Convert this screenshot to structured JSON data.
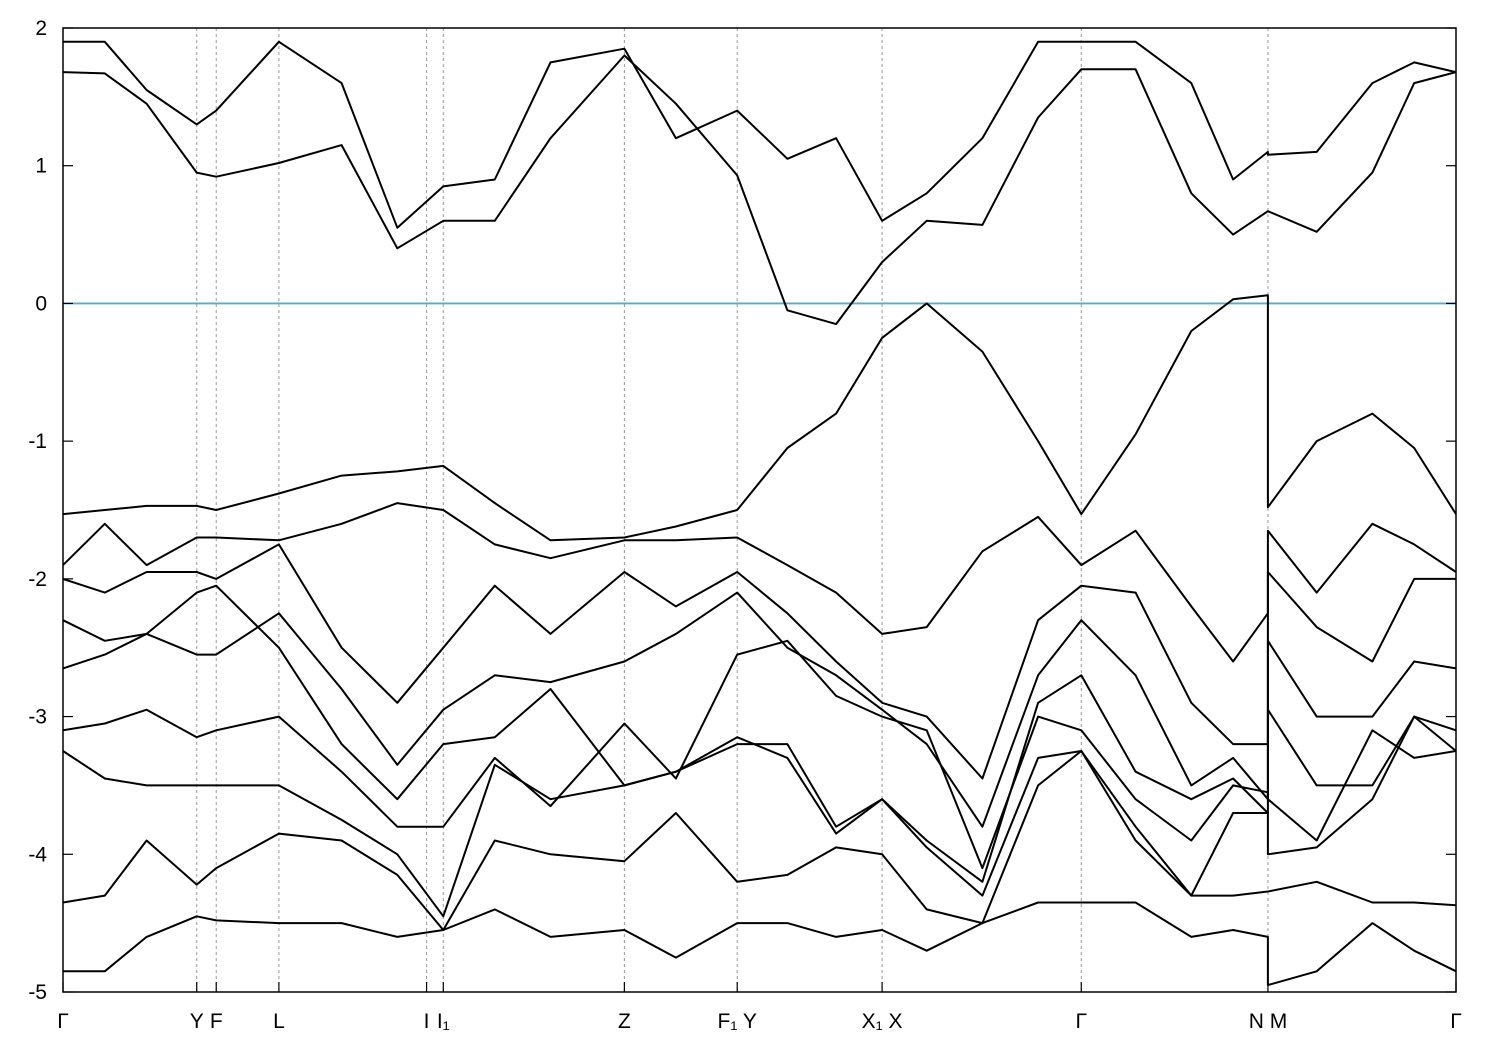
{
  "chart_data": {
    "type": "line",
    "xlim": [
      0,
      1
    ],
    "ylim": [
      -5,
      2
    ],
    "yticks": [
      -5,
      -4,
      -3,
      -2,
      -1,
      0,
      1,
      2
    ],
    "xticks": [
      {
        "value": 0,
        "label": "Γ"
      },
      {
        "value": 0.096,
        "label": "Y"
      },
      {
        "value": 0.11,
        "label": "F"
      },
      {
        "value": 0.155,
        "label": "L"
      },
      {
        "value": 0.261,
        "label": "I"
      },
      {
        "value": 0.273,
        "label": "I₁"
      },
      {
        "value": 0.403,
        "label": "Z"
      },
      {
        "value": 0.484,
        "label": "F₁ Y"
      },
      {
        "value": 0.588,
        "label": "X₁ X"
      },
      {
        "value": 0.731,
        "label": "Γ"
      },
      {
        "value": 0.865,
        "label": "N M"
      },
      {
        "value": 1,
        "label": "Γ"
      }
    ],
    "xgrid": true,
    "reference_line": {
      "value": 0,
      "color": "#5aaac8"
    },
    "x": [
      0,
      0.03,
      0.06,
      0.096,
      0.11,
      0.155,
      0.2,
      0.24,
      0.273,
      0.31,
      0.35,
      0.403,
      0.44,
      0.484,
      0.52,
      0.555,
      0.588,
      0.62,
      0.66,
      0.7,
      0.731,
      0.77,
      0.81,
      0.84,
      0.865,
      0.865,
      0.9,
      0.94,
      0.97,
      1.0
    ],
    "series": [
      {
        "color": "#000000",
        "values": [
          1.9,
          1.9,
          1.55,
          1.3,
          1.4,
          1.9,
          1.6,
          0.55,
          0.85,
          0.9,
          1.75,
          1.85,
          1.2,
          1.4,
          1.05,
          1.2,
          0.6,
          0.8,
          1.2,
          1.9,
          1.9,
          1.9,
          1.6,
          0.9,
          1.1,
          1.08,
          1.1,
          1.6,
          1.75,
          1.68
        ]
      },
      {
        "color": "#000000",
        "values": [
          1.68,
          1.67,
          1.45,
          0.95,
          0.92,
          1.02,
          1.15,
          0.4,
          0.6,
          0.6,
          1.2,
          1.8,
          1.45,
          0.93,
          -0.05,
          -0.15,
          0.3,
          0.6,
          0.57,
          1.35,
          1.7,
          1.7,
          0.8,
          0.5,
          0.67,
          0.67,
          0.52,
          0.95,
          1.6,
          1.68
        ]
      },
      {
        "color": "#000000",
        "values": [
          -1.53,
          -1.5,
          -1.47,
          -1.47,
          -1.5,
          -1.38,
          -1.25,
          -1.22,
          -1.18,
          -1.45,
          -1.72,
          -1.7,
          -1.62,
          -1.5,
          -1.05,
          -0.8,
          -0.25,
          0.0,
          -0.35,
          -1.0,
          -1.53,
          -0.95,
          -0.2,
          0.03,
          0.06,
          -1.48,
          -1.0,
          -0.8,
          -1.05,
          -1.53
        ]
      },
      {
        "color": "#000000",
        "values": [
          -1.9,
          -1.6,
          -1.9,
          -1.7,
          -1.7,
          -1.72,
          -1.6,
          -1.45,
          -1.5,
          -1.75,
          -1.85,
          -1.72,
          -1.72,
          -1.7,
          -1.9,
          -2.1,
          -2.4,
          -2.35,
          -1.8,
          -1.55,
          -1.9,
          -1.65,
          -2.2,
          -2.6,
          -2.25,
          -1.65,
          -2.1,
          -1.6,
          -1.75,
          -1.95
        ]
      },
      {
        "color": "#000000",
        "values": [
          -2.0,
          -2.1,
          -1.95,
          -1.95,
          -2.0,
          -1.75,
          -2.5,
          -2.9,
          -2.5,
          -2.05,
          -2.4,
          -1.95,
          -2.2,
          -1.95,
          -2.25,
          -2.6,
          -2.9,
          -3.0,
          -3.45,
          -2.3,
          -2.05,
          -2.1,
          -2.9,
          -3.2,
          -3.2,
          -1.95,
          -2.35,
          -2.6,
          -2.0,
          -2.0
        ]
      },
      {
        "color": "#000000",
        "values": [
          -2.3,
          -2.45,
          -2.4,
          -2.55,
          -2.55,
          -2.25,
          -2.8,
          -3.35,
          -2.95,
          -2.7,
          -2.75,
          -2.6,
          -2.4,
          -2.1,
          -2.5,
          -2.7,
          -2.95,
          -3.2,
          -3.8,
          -2.7,
          -2.3,
          -2.7,
          -3.5,
          -3.3,
          -3.6,
          -2.45,
          -3.0,
          -3.0,
          -2.6,
          -2.65
        ]
      },
      {
        "color": "#000000",
        "values": [
          -2.65,
          -2.55,
          -2.4,
          -2.1,
          -2.05,
          -2.5,
          -3.2,
          -3.6,
          -3.2,
          -3.15,
          -2.8,
          -3.5,
          -3.4,
          -3.2,
          -3.2,
          -3.8,
          -3.6,
          -3.9,
          -4.2,
          -2.9,
          -2.7,
          -3.4,
          -3.6,
          -3.45,
          -3.7,
          -2.95,
          -3.5,
          -3.5,
          -3.0,
          -3.1
        ]
      },
      {
        "color": "#000000",
        "values": [
          -3.1,
          -3.05,
          -2.95,
          -3.15,
          -3.1,
          -3.0,
          -3.4,
          -3.8,
          -3.8,
          -3.3,
          -3.65,
          -3.05,
          -3.45,
          -2.55,
          -2.45,
          -2.85,
          -3.0,
          -3.1,
          -4.1,
          -3.0,
          -3.1,
          -3.6,
          -3.9,
          -3.5,
          -3.55,
          -3.6,
          -3.9,
          -3.1,
          -3.3,
          -3.25
        ]
      },
      {
        "color": "#000000",
        "values": [
          -3.25,
          -3.45,
          -3.5,
          -3.5,
          -3.5,
          -3.5,
          -3.75,
          -4.0,
          -4.45,
          -3.35,
          -3.6,
          -3.5,
          -3.4,
          -3.15,
          -3.3,
          -3.85,
          -3.6,
          -3.95,
          -4.3,
          -3.3,
          -3.25,
          -3.8,
          -4.3,
          -3.7,
          -3.7,
          -4.0,
          -3.95,
          -3.6,
          -3.0,
          -3.25
        ]
      },
      {
        "color": "#000000",
        "values": [
          -4.35,
          -4.3,
          -3.9,
          -4.22,
          -4.1,
          -3.85,
          -3.9,
          -4.15,
          -4.55,
          -3.9,
          -4.0,
          -4.05,
          -3.7,
          -4.2,
          -4.15,
          -3.95,
          -4.0,
          -4.4,
          -4.5,
          -3.5,
          -3.25,
          -3.9,
          -4.3,
          -4.3,
          -4.27,
          -4.27,
          -4.2,
          -4.35,
          -4.35,
          -4.37
        ]
      },
      {
        "color": "#000000",
        "values": [
          -4.85,
          -4.85,
          -4.6,
          -4.45,
          -4.48,
          -4.5,
          -4.5,
          -4.6,
          -4.55,
          -4.4,
          -4.6,
          -4.55,
          -4.75,
          -4.5,
          -4.5,
          -4.6,
          -4.55,
          -4.7,
          -4.5,
          -4.35,
          -4.35,
          -4.35,
          -4.6,
          -4.55,
          -4.6,
          -4.95,
          -4.85,
          -4.5,
          -4.7,
          -4.85
        ]
      }
    ]
  }
}
